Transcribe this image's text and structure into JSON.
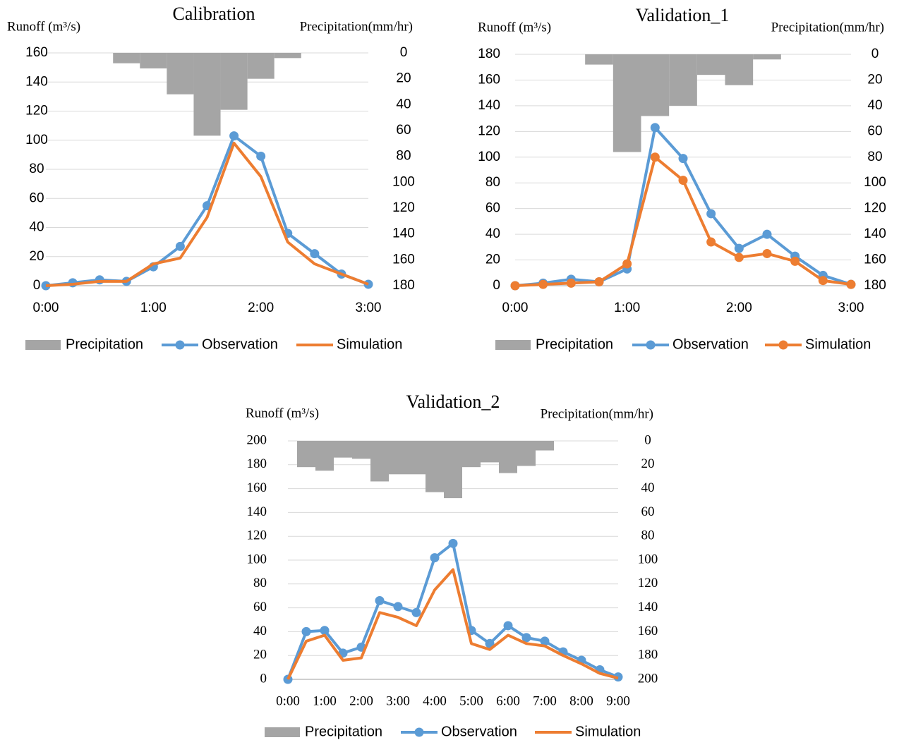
{
  "chart_data": [
    {
      "type": "combo",
      "title": "Calibration",
      "y_label": "Runoff (m³/s)",
      "y2_label": "Precipitation(mm/hr)",
      "categories": [
        "0:00",
        null,
        null,
        null,
        "1:00",
        null,
        null,
        null,
        "2:00",
        null,
        null,
        null,
        "3:00"
      ],
      "series": [
        {
          "name": "Precipitation",
          "type": "bar",
          "axis": "y2",
          "color": "#a5a5a5",
          "values": [
            0,
            0,
            0,
            8,
            12,
            32,
            64,
            44,
            20,
            4,
            0,
            0,
            0
          ]
        },
        {
          "name": "Observation",
          "type": "line",
          "color": "#5b9bd5",
          "markers": true,
          "values": [
            0,
            2,
            4,
            3,
            13,
            27,
            55,
            103,
            89,
            36,
            22,
            8,
            1
          ]
        },
        {
          "name": "Simulation",
          "type": "line",
          "color": "#ed7d31",
          "markers": false,
          "values": [
            0,
            1,
            3,
            3,
            15,
            19,
            47,
            98,
            75,
            30,
            15,
            8,
            1
          ]
        }
      ],
      "ylim": [
        0,
        160
      ],
      "yticks": [
        0,
        20,
        40,
        60,
        80,
        100,
        120,
        140,
        160
      ],
      "y2lim": [
        0,
        180
      ],
      "y2ticks": [
        0,
        20,
        40,
        60,
        80,
        100,
        120,
        140,
        160,
        180
      ],
      "y2_inverted": true,
      "grid": true,
      "legend": "bottom"
    },
    {
      "type": "combo",
      "title": "Validation_1",
      "y_label": "Runoff (m³/s)",
      "y2_label": "Precipitation(mm/hr)",
      "categories": [
        "0:00",
        null,
        null,
        null,
        "1:00",
        null,
        null,
        null,
        "2:00",
        null,
        null,
        null,
        "3:00"
      ],
      "series": [
        {
          "name": "Precipitation",
          "type": "bar",
          "axis": "y2",
          "color": "#a5a5a5",
          "values": [
            0,
            0,
            0,
            8,
            76,
            48,
            40,
            16,
            24,
            4,
            0,
            0,
            0
          ]
        },
        {
          "name": "Observation",
          "type": "line",
          "color": "#5b9bd5",
          "markers": true,
          "values": [
            0,
            2,
            5,
            3,
            13,
            123,
            99,
            56,
            29,
            40,
            23,
            8,
            1
          ]
        },
        {
          "name": "Simulation",
          "type": "line",
          "color": "#ed7d31",
          "markers": true,
          "values": [
            0,
            1,
            2,
            3,
            17,
            100,
            82,
            34,
            22,
            25,
            19,
            4,
            1
          ]
        }
      ],
      "ylim": [
        0,
        180
      ],
      "yticks": [
        0,
        20,
        40,
        60,
        80,
        100,
        120,
        140,
        160,
        180
      ],
      "y2lim": [
        0,
        180
      ],
      "y2ticks": [
        0,
        20,
        40,
        60,
        80,
        100,
        120,
        140,
        160,
        180
      ],
      "y2_inverted": true,
      "grid": true,
      "legend": "bottom"
    },
    {
      "type": "combo",
      "title": "Validation_2",
      "y_label": "Runoff (m³/s)",
      "y2_label": "Precipitation(mm/hr)",
      "categories": [
        "0:00",
        null,
        "1:00",
        null,
        "2:00",
        null,
        "3:00",
        null,
        "4:00",
        null,
        "5:00",
        null,
        "6:00",
        null,
        "7:00",
        null,
        "8:00",
        null,
        "9:00"
      ],
      "series": [
        {
          "name": "Precipitation",
          "type": "bar",
          "axis": "y2",
          "color": "#a5a5a5",
          "values": [
            0,
            22,
            25,
            14,
            15,
            34,
            28,
            28,
            43,
            48,
            22,
            18,
            27,
            21,
            8,
            0,
            0,
            0,
            0
          ]
        },
        {
          "name": "Observation",
          "type": "line",
          "color": "#5b9bd5",
          "markers": true,
          "values": [
            0,
            40,
            41,
            22,
            27,
            66,
            61,
            56,
            102,
            114,
            41,
            30,
            45,
            35,
            32,
            23,
            16,
            8,
            2
          ]
        },
        {
          "name": "Simulation",
          "type": "line",
          "color": "#ed7d31",
          "markers": false,
          "values": [
            0,
            32,
            37,
            16,
            18,
            56,
            52,
            45,
            75,
            92,
            30,
            25,
            37,
            30,
            28,
            20,
            13,
            5,
            1
          ]
        }
      ],
      "ylim": [
        0,
        200
      ],
      "yticks": [
        0,
        20,
        40,
        60,
        80,
        100,
        120,
        140,
        160,
        180,
        200
      ],
      "y2lim": [
        0,
        200
      ],
      "y2ticks": [
        0,
        20,
        40,
        60,
        80,
        100,
        120,
        140,
        160,
        180,
        200
      ],
      "y2_inverted": true,
      "grid": true,
      "legend": "bottom"
    }
  ]
}
